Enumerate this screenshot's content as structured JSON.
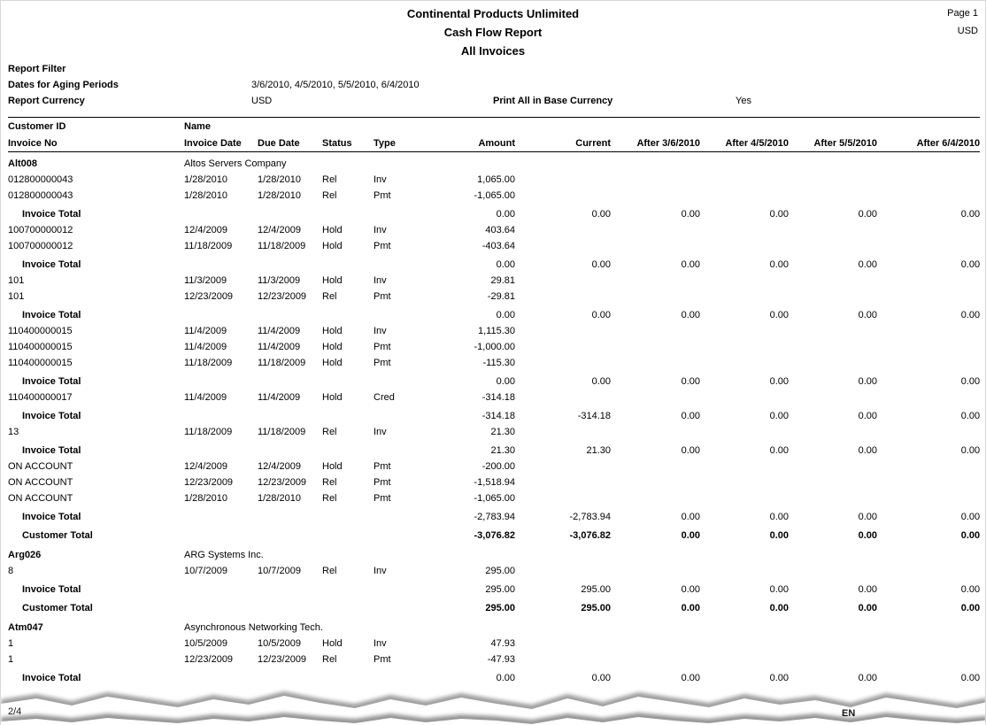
{
  "page_header": {
    "company": "Continental Products Unlimited",
    "report_title": "Cash Flow Report",
    "report_scope": "All Invoices",
    "page_number": "Page 1",
    "currency": "USD"
  },
  "filters": {
    "section_label": "Report Filter",
    "aging_label": "Dates for Aging Periods",
    "aging_dates": "3/6/2010, 4/5/2010, 5/5/2010, 6/4/2010",
    "currency_label": "Report Currency",
    "currency_value": "USD",
    "base_currency_label": "Print All in Base Currency",
    "base_currency_value": "Yes"
  },
  "table": {
    "group_headers": {
      "customer_id": "Customer ID",
      "name": "Name"
    },
    "columns": [
      "Invoice No",
      "Invoice Date",
      "Due Date",
      "Status",
      "Type",
      "Amount",
      "Current",
      "After 3/6/2010",
      "After 4/5/2010",
      "After 5/5/2010",
      "After 6/4/2010"
    ],
    "rows": [
      {
        "kind": "customer",
        "cells": [
          "Alt008",
          "Altos Servers Company"
        ]
      },
      {
        "kind": "detail",
        "cells": [
          "012800000043",
          "1/28/2010",
          "1/28/2010",
          "Rel",
          "Inv",
          "1,065.00",
          "",
          "",
          "",
          "",
          ""
        ]
      },
      {
        "kind": "detail",
        "cells": [
          "012800000043",
          "1/28/2010",
          "1/28/2010",
          "Rel",
          "Pmt",
          "-1,065.00",
          "",
          "",
          "",
          "",
          ""
        ]
      },
      {
        "kind": "invoice_total",
        "cells": [
          "Invoice Total",
          "",
          "",
          "",
          "",
          "0.00",
          "0.00",
          "0.00",
          "0.00",
          "0.00",
          "0.00"
        ]
      },
      {
        "kind": "detail",
        "cells": [
          "100700000012",
          "12/4/2009",
          "12/4/2009",
          "Hold",
          "Inv",
          "403.64",
          "",
          "",
          "",
          "",
          ""
        ]
      },
      {
        "kind": "detail",
        "cells": [
          "100700000012",
          "11/18/2009",
          "11/18/2009",
          "Hold",
          "Pmt",
          "-403.64",
          "",
          "",
          "",
          "",
          ""
        ]
      },
      {
        "kind": "invoice_total",
        "cells": [
          "Invoice Total",
          "",
          "",
          "",
          "",
          "0.00",
          "0.00",
          "0.00",
          "0.00",
          "0.00",
          "0.00"
        ]
      },
      {
        "kind": "detail",
        "cells": [
          "101",
          "11/3/2009",
          "11/3/2009",
          "Hold",
          "Inv",
          "29.81",
          "",
          "",
          "",
          "",
          ""
        ]
      },
      {
        "kind": "detail",
        "cells": [
          "101",
          "12/23/2009",
          "12/23/2009",
          "Rel",
          "Pmt",
          "-29.81",
          "",
          "",
          "",
          "",
          ""
        ]
      },
      {
        "kind": "invoice_total",
        "cells": [
          "Invoice Total",
          "",
          "",
          "",
          "",
          "0.00",
          "0.00",
          "0.00",
          "0.00",
          "0.00",
          "0.00"
        ]
      },
      {
        "kind": "detail",
        "cells": [
          "110400000015",
          "11/4/2009",
          "11/4/2009",
          "Hold",
          "Inv",
          "1,115.30",
          "",
          "",
          "",
          "",
          ""
        ]
      },
      {
        "kind": "detail",
        "cells": [
          "110400000015",
          "11/4/2009",
          "11/4/2009",
          "Hold",
          "Pmt",
          "-1,000.00",
          "",
          "",
          "",
          "",
          ""
        ]
      },
      {
        "kind": "detail",
        "cells": [
          "110400000015",
          "11/18/2009",
          "11/18/2009",
          "Hold",
          "Pmt",
          "-115.30",
          "",
          "",
          "",
          "",
          ""
        ]
      },
      {
        "kind": "invoice_total",
        "cells": [
          "Invoice Total",
          "",
          "",
          "",
          "",
          "0.00",
          "0.00",
          "0.00",
          "0.00",
          "0.00",
          "0.00"
        ]
      },
      {
        "kind": "detail",
        "cells": [
          "110400000017",
          "11/4/2009",
          "11/4/2009",
          "Hold",
          "Cred",
          "-314.18",
          "",
          "",
          "",
          "",
          ""
        ]
      },
      {
        "kind": "invoice_total",
        "cells": [
          "Invoice Total",
          "",
          "",
          "",
          "",
          "-314.18",
          "-314.18",
          "0.00",
          "0.00",
          "0.00",
          "0.00"
        ]
      },
      {
        "kind": "detail",
        "cells": [
          "13",
          "11/18/2009",
          "11/18/2009",
          "Rel",
          "Inv",
          "21.30",
          "",
          "",
          "",
          "",
          ""
        ]
      },
      {
        "kind": "invoice_total",
        "cells": [
          "Invoice Total",
          "",
          "",
          "",
          "",
          "21.30",
          "21.30",
          "0.00",
          "0.00",
          "0.00",
          "0.00"
        ]
      },
      {
        "kind": "detail",
        "cells": [
          "ON ACCOUNT",
          "12/4/2009",
          "12/4/2009",
          "Hold",
          "Pmt",
          "-200.00",
          "",
          "",
          "",
          "",
          ""
        ]
      },
      {
        "kind": "detail",
        "cells": [
          "ON ACCOUNT",
          "12/23/2009",
          "12/23/2009",
          "Rel",
          "Pmt",
          "-1,518.94",
          "",
          "",
          "",
          "",
          ""
        ]
      },
      {
        "kind": "detail",
        "cells": [
          "ON ACCOUNT",
          "1/28/2010",
          "1/28/2010",
          "Rel",
          "Pmt",
          "-1,065.00",
          "",
          "",
          "",
          "",
          ""
        ]
      },
      {
        "kind": "invoice_total",
        "cells": [
          "Invoice Total",
          "",
          "",
          "",
          "",
          "-2,783.94",
          "-2,783.94",
          "0.00",
          "0.00",
          "0.00",
          "0.00"
        ]
      },
      {
        "kind": "customer_total",
        "cells": [
          "Customer Total",
          "",
          "",
          "",
          "",
          "-3,076.82",
          "-3,076.82",
          "0.00",
          "0.00",
          "0.00",
          "0.00"
        ]
      },
      {
        "kind": "customer",
        "cells": [
          "Arg026",
          "ARG Systems Inc."
        ]
      },
      {
        "kind": "detail",
        "cells": [
          "8",
          "10/7/2009",
          "10/7/2009",
          "Rel",
          "Inv",
          "295.00",
          "",
          "",
          "",
          "",
          ""
        ]
      },
      {
        "kind": "invoice_total",
        "cells": [
          "Invoice Total",
          "",
          "",
          "",
          "",
          "295.00",
          "295.00",
          "0.00",
          "0.00",
          "0.00",
          "0.00"
        ]
      },
      {
        "kind": "customer_total",
        "cells": [
          "Customer Total",
          "",
          "",
          "",
          "",
          "295.00",
          "295.00",
          "0.00",
          "0.00",
          "0.00",
          "0.00"
        ]
      },
      {
        "kind": "customer",
        "cells": [
          "Atm047",
          "Asynchronous Networking Tech."
        ]
      },
      {
        "kind": "detail",
        "cells": [
          "1",
          "10/5/2009",
          "10/5/2009",
          "Hold",
          "Inv",
          "47.93",
          "",
          "",
          "",
          "",
          ""
        ]
      },
      {
        "kind": "detail",
        "cells": [
          "1",
          "12/23/2009",
          "12/23/2009",
          "Rel",
          "Pmt",
          "-47.93",
          "",
          "",
          "",
          "",
          ""
        ]
      },
      {
        "kind": "invoice_total",
        "cells": [
          "Invoice Total",
          "",
          "",
          "",
          "",
          "0.00",
          "0.00",
          "0.00",
          "0.00",
          "0.00",
          "0.00"
        ]
      }
    ]
  },
  "torn_edge": {
    "fragment_left": "2/4",
    "fragment_right": "EN"
  }
}
